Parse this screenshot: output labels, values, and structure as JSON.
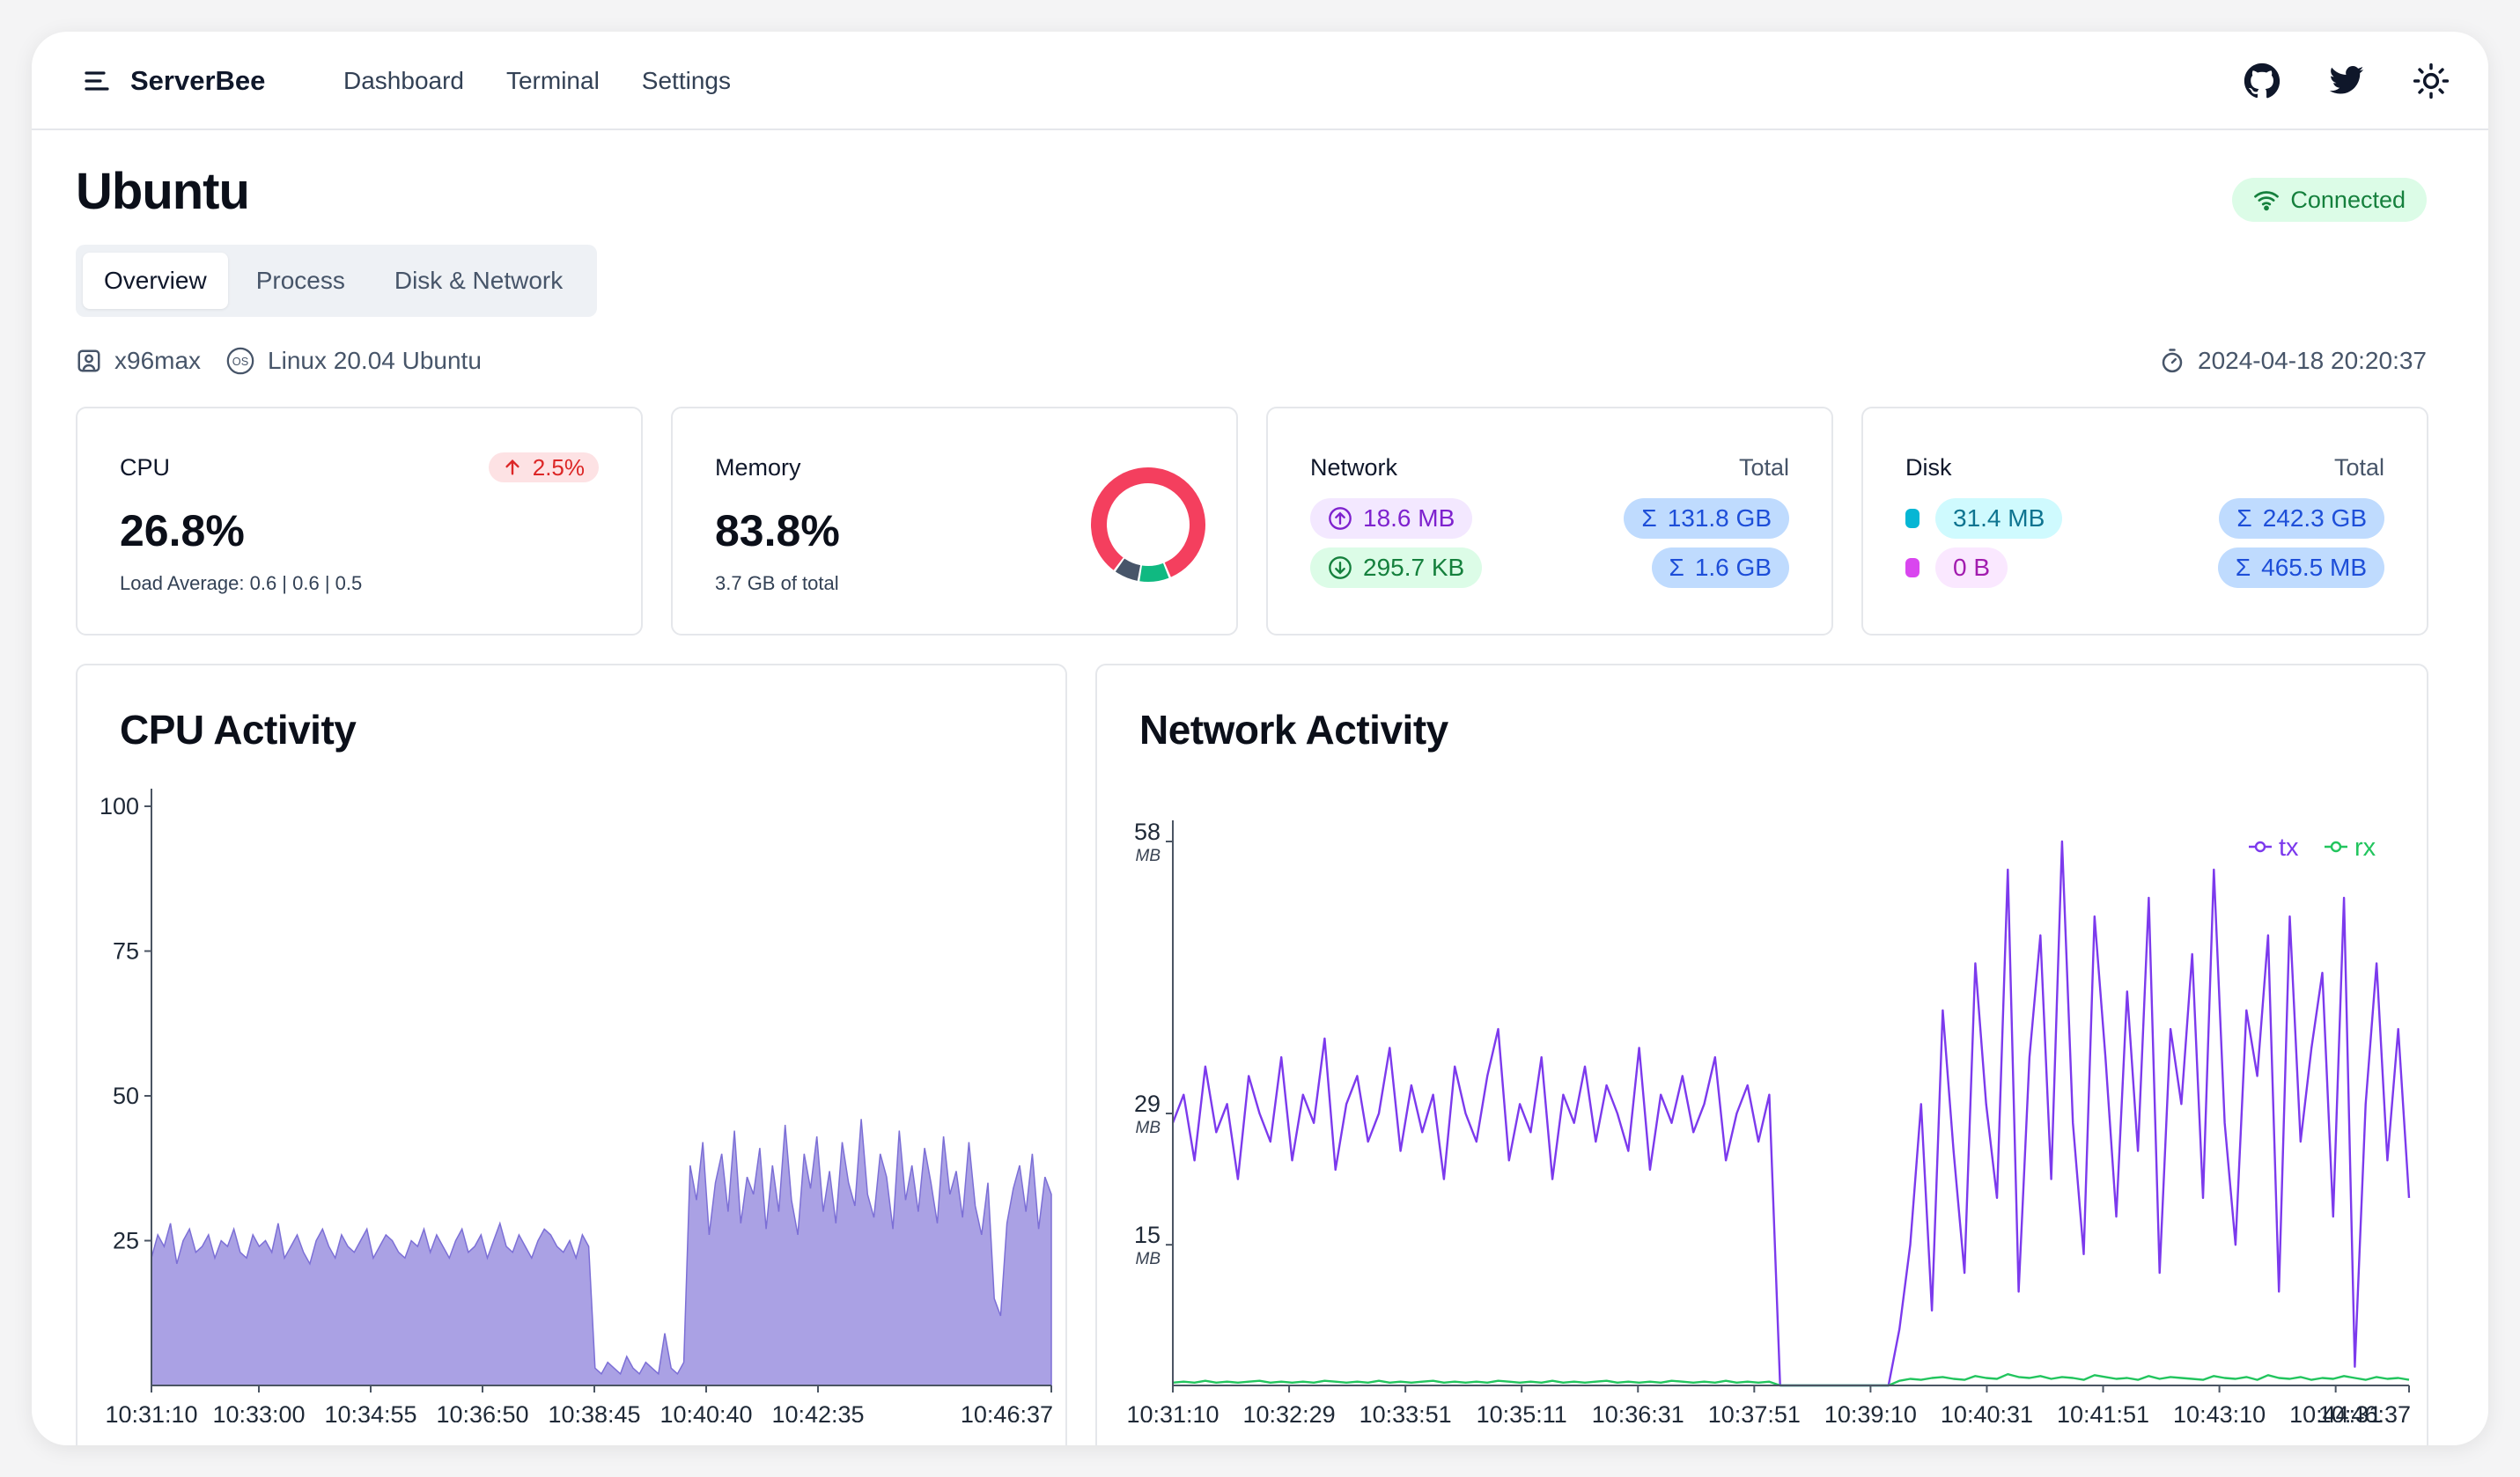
{
  "app": {
    "brand": "ServerBee",
    "nav": [
      "Dashboard",
      "Terminal",
      "Settings"
    ],
    "icons": [
      "menu-icon",
      "github-icon",
      "twitter-icon",
      "sun-icon"
    ]
  },
  "page": {
    "title": "Ubuntu",
    "status": "Connected",
    "tabs": [
      {
        "label": "Overview",
        "active": true
      },
      {
        "label": "Process",
        "active": false
      },
      {
        "label": "Disk & Network",
        "active": false
      }
    ],
    "host": "x96max",
    "os": "Linux 20.04 Ubuntu",
    "datetime": "2024-04-18 20:20:37"
  },
  "cards": {
    "cpu": {
      "label": "CPU",
      "value": "26.8%",
      "change": "2.5%",
      "load": "Load Average: 0.6 | 0.6 | 0.5"
    },
    "memory": {
      "label": "Memory",
      "value": "83.8%",
      "sub": "3.7 GB of total",
      "used_fraction": 0.838,
      "colors": {
        "used": "#f43f5e",
        "cache": "#10b981",
        "other": "#475569"
      }
    },
    "network": {
      "label": "Network",
      "total_label": "Total",
      "up": "18.6 MB",
      "down": "295.7 KB",
      "total_up": "131.8 GB",
      "total_down": "1.6 GB"
    },
    "disk": {
      "label": "Disk",
      "total_label": "Total",
      "read": "31.4 MB",
      "write": "0 B",
      "total_read": "242.3 GB",
      "total_write": "465.5 MB",
      "colors": {
        "read": "#06b6d4",
        "write": "#d946ef"
      }
    }
  },
  "charts": {
    "cpu": {
      "title": "CPU Activity"
    },
    "network": {
      "title": "Network Activity"
    }
  },
  "chart_data": [
    {
      "type": "area",
      "title": "CPU Activity",
      "ylim": [
        0,
        100
      ],
      "yticks": [
        25,
        50,
        75,
        100
      ],
      "xticks": [
        "10:31:10",
        "10:33:00",
        "10:34:55",
        "10:36:50",
        "10:38:45",
        "10:40:40",
        "10:42:35",
        "10:46:37"
      ],
      "color": "#7c6fd6",
      "series": [
        {
          "values": [
            22,
            26,
            24,
            28,
            21,
            25,
            27,
            23,
            24,
            26,
            22,
            25,
            24,
            27,
            23,
            22,
            26,
            24,
            25,
            23,
            28,
            22,
            24,
            26,
            23,
            21,
            25,
            27,
            24,
            22,
            26,
            24,
            23,
            25,
            27,
            22,
            24,
            26,
            25,
            23,
            22,
            25,
            24,
            27,
            23,
            26,
            24,
            22,
            25,
            27,
            23,
            24,
            26,
            22,
            25,
            28,
            24,
            23,
            26,
            24,
            22,
            25,
            27,
            26,
            24,
            23,
            25,
            22,
            26,
            24,
            3,
            2,
            4,
            3,
            2,
            5,
            3,
            2,
            4,
            3,
            2,
            9,
            3,
            2,
            4,
            38,
            32,
            42,
            26,
            35,
            40,
            30,
            44,
            28,
            36,
            33,
            41,
            27,
            38,
            30,
            45,
            32,
            26,
            40,
            34,
            43,
            30,
            37,
            28,
            42,
            35,
            31,
            46,
            33,
            29,
            40,
            36,
            27,
            44,
            32,
            38,
            30,
            41,
            35,
            28,
            43,
            33,
            37,
            29,
            42,
            31,
            26,
            35,
            15,
            12,
            28,
            34,
            38,
            30,
            40,
            27,
            36,
            33
          ]
        }
      ]
    },
    {
      "type": "line",
      "title": "Network Activity",
      "yticks": [
        "15",
        "29",
        "58"
      ],
      "y_unit": "MB",
      "xticks": [
        "10:31:10",
        "10:32:29",
        "10:33:51",
        "10:35:11",
        "10:36:31",
        "10:37:51",
        "10:39:10",
        "10:40:31",
        "10:41:51",
        "10:43:10",
        "10:44:31",
        "10:46:37"
      ],
      "legend": [
        "tx",
        "rx"
      ],
      "legend_position": "top-right",
      "series": [
        {
          "name": "tx",
          "color": "#7c3aed",
          "values": [
            28,
            31,
            24,
            34,
            27,
            30,
            22,
            33,
            29,
            26,
            35,
            24,
            31,
            28,
            37,
            23,
            30,
            33,
            26,
            29,
            36,
            25,
            32,
            27,
            31,
            22,
            34,
            29,
            26,
            33,
            38,
            24,
            30,
            27,
            35,
            22,
            31,
            28,
            34,
            26,
            32,
            29,
            25,
            36,
            23,
            31,
            28,
            33,
            27,
            30,
            35,
            24,
            29,
            32,
            26,
            31,
            0,
            0,
            0,
            0,
            0,
            0,
            0,
            0,
            0,
            0,
            0,
            6,
            15,
            30,
            8,
            40,
            25,
            12,
            45,
            30,
            20,
            55,
            10,
            35,
            48,
            22,
            58,
            28,
            14,
            50,
            35,
            18,
            42,
            25,
            52,
            12,
            38,
            30,
            46,
            20,
            55,
            28,
            15,
            40,
            33,
            48,
            10,
            50,
            26,
            36,
            44,
            18,
            52,
            2,
            30,
            45,
            24,
            38,
            20
          ]
        },
        {
          "name": "rx",
          "color": "#22c55e",
          "values": [
            0.3,
            0.4,
            0.3,
            0.5,
            0.3,
            0.4,
            0.3,
            0.4,
            0.5,
            0.3,
            0.4,
            0.3,
            0.4,
            0.3,
            0.5,
            0.4,
            0.3,
            0.4,
            0.3,
            0.5,
            0.3,
            0.4,
            0.3,
            0.4,
            0.5,
            0.3,
            0.4,
            0.3,
            0.4,
            0.3,
            0.5,
            0.4,
            0.3,
            0.4,
            0.3,
            0.5,
            0.3,
            0.4,
            0.3,
            0.4,
            0.5,
            0.3,
            0.4,
            0.3,
            0.4,
            0.3,
            0.5,
            0.4,
            0.3,
            0.4,
            0.3,
            0.5,
            0.3,
            0.4,
            0.3,
            0.4,
            0,
            0,
            0,
            0,
            0,
            0,
            0,
            0,
            0,
            0,
            0,
            0.5,
            0.7,
            0.6,
            0.8,
            0.9,
            0.7,
            0.6,
            1.0,
            0.8,
            0.7,
            1.2,
            0.9,
            0.8,
            1.0,
            0.7,
            0.9,
            0.8,
            0.6,
            1.1,
            0.9,
            0.7,
            0.8,
            0.6,
            1.0,
            0.7,
            0.9,
            0.8,
            0.7,
            0.6,
            1.0,
            0.8,
            0.7,
            0.9,
            0.6,
            1.1,
            0.8,
            0.7,
            0.9,
            0.6,
            0.8,
            0.7,
            1.0,
            0.8,
            0.6,
            0.9,
            0.7,
            0.8,
            0.6
          ]
        }
      ]
    }
  ]
}
